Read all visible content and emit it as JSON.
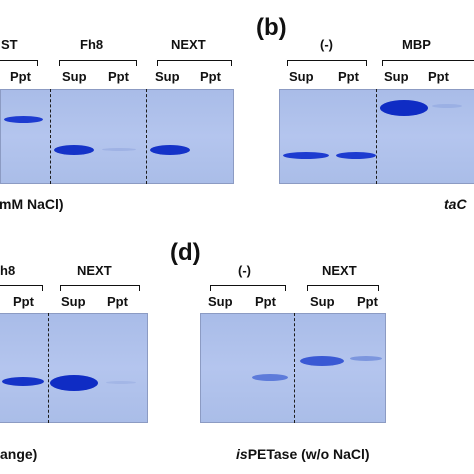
{
  "panels": {
    "b": "(b)",
    "d": "(d)"
  },
  "top_left": {
    "groups": [
      "ST",
      "Fh8",
      "NEXT"
    ],
    "lanes": [
      "Ppt",
      "Sup",
      "Ppt",
      "Sup",
      "Ppt"
    ],
    "caption": "mM NaCl)"
  },
  "top_right": {
    "groups": [
      "(-)",
      "MBP"
    ],
    "lanes": [
      "Sup",
      "Ppt",
      "Sup",
      "Ppt"
    ],
    "caption": "taC"
  },
  "bottom_left": {
    "groups": [
      "h8",
      "NEXT"
    ],
    "lanes": [
      "Ppt",
      "Sup",
      "Ppt"
    ],
    "caption": "ange)"
  },
  "bottom_right": {
    "groups": [
      "(-)",
      "NEXT"
    ],
    "lanes": [
      "Sup",
      "Ppt",
      "Sup",
      "Ppt"
    ],
    "caption_prefix": "is",
    "caption_rest": "PETase (w/o NaCl)"
  },
  "colors": {
    "gel": "#b0c2ec",
    "band": "#1533c8"
  }
}
